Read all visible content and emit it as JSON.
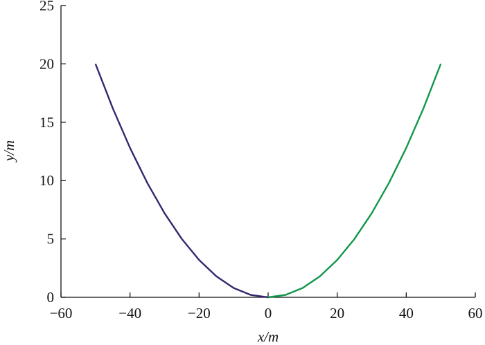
{
  "chart_data": {
    "type": "line",
    "xlabel": "x/m",
    "ylabel": "y/m",
    "xlim": [
      -60,
      60
    ],
    "xticks": [
      {
        "value": -60,
        "label": "−60"
      },
      {
        "value": -40,
        "label": "−40"
      },
      {
        "value": -20,
        "label": "−20"
      },
      0,
      20,
      40,
      60
    ],
    "ylim": [
      0,
      25
    ],
    "yticks": [
      0,
      5,
      10,
      15,
      20,
      25
    ],
    "grid": false,
    "series": [
      {
        "color": "#35266f",
        "x": [
          -50,
          -45,
          -40,
          -35,
          -30,
          -25,
          -20,
          -15,
          -10,
          -5,
          0
        ],
        "values": [
          20,
          16.2,
          12.8,
          9.8,
          7.2,
          5,
          3.2,
          1.8,
          0.8,
          0.2,
          0
        ]
      },
      {
        "color": "#12964a",
        "x": [
          0,
          5,
          10,
          15,
          20,
          25,
          30,
          35,
          40,
          45,
          50
        ],
        "values": [
          0,
          0.2,
          0.8,
          1.8,
          3.2,
          5,
          7.2,
          9.8,
          12.8,
          16.2,
          20
        ]
      }
    ]
  }
}
